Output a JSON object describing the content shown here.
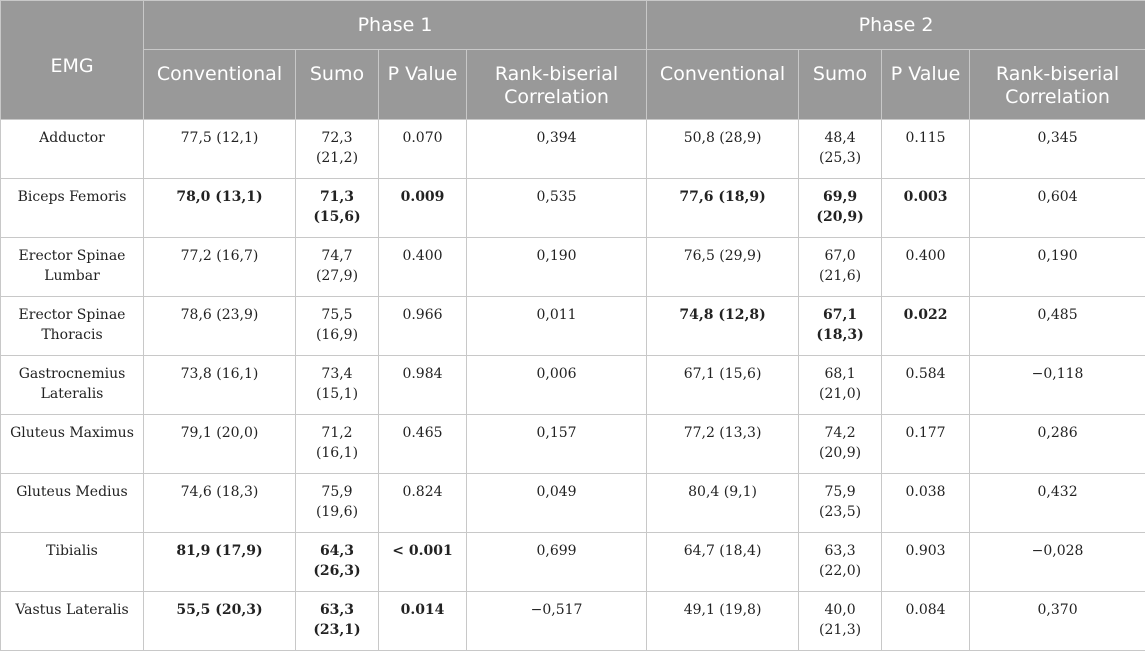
{
  "header": {
    "emg": "EMG",
    "phase1": "Phase 1",
    "phase2": "Phase 2",
    "conventional": "Conventional",
    "sumo": "Sumo",
    "p_value": "P Value",
    "rank_biserial": "Rank-biserial Correlation"
  },
  "rows": [
    {
      "muscle": "Adductor",
      "p1_conv": "77,5 (12,1)",
      "p1_sumo": "72,3 (21,2)",
      "p1_p": "0.070",
      "p1_r": "0,394",
      "p2_conv": "50,8 (28,9)",
      "p2_sumo": "48,4 (25,3)",
      "p2_p": "0.115",
      "p2_r": "0,345"
    },
    {
      "muscle": "Biceps Femoris",
      "p1_conv": "78,0 (13,1)",
      "p1_sumo": "71,3 (15,6)",
      "p1_p": "0.009",
      "p1_r": "0,535",
      "p2_conv": "77,6 (18,9)",
      "p2_sumo": "69,9 (20,9)",
      "p2_p": "0.003",
      "p2_r": "0,604"
    },
    {
      "muscle": "Erector Spinae Lumbar",
      "p1_conv": "77,2 (16,7)",
      "p1_sumo": "74,7 (27,9)",
      "p1_p": "0.400",
      "p1_r": "0,190",
      "p2_conv": "76,5 (29,9)",
      "p2_sumo": "67,0 (21,6)",
      "p2_p": "0.400",
      "p2_r": "0,190"
    },
    {
      "muscle": "Erector Spinae Thoracis",
      "p1_conv": "78,6 (23,9)",
      "p1_sumo": "75,5 (16,9)",
      "p1_p": "0.966",
      "p1_r": "0,011",
      "p2_conv": "74,8 (12,8)",
      "p2_sumo": "67,1 (18,3)",
      "p2_p": "0.022",
      "p2_r": "0,485"
    },
    {
      "muscle": "Gastrocnemius Lateralis",
      "p1_conv": "73,8 (16,1)",
      "p1_sumo": "73,4 (15,1)",
      "p1_p": "0.984",
      "p1_r": "0,006",
      "p2_conv": "67,1 (15,6)",
      "p2_sumo": "68,1 (21,0)",
      "p2_p": "0.584",
      "p2_r": "−0,118"
    },
    {
      "muscle": "Gluteus Maximus",
      "p1_conv": "79,1 (20,0)",
      "p1_sumo": "71,2 (16,1)",
      "p1_p": "0.465",
      "p1_r": "0,157",
      "p2_conv": "77,2 (13,3)",
      "p2_sumo": "74,2 (20,9)",
      "p2_p": "0.177",
      "p2_r": "0,286"
    },
    {
      "muscle": "Gluteus Medius",
      "p1_conv": "74,6 (18,3)",
      "p1_sumo": "75,9 (19,6)",
      "p1_p": "0.824",
      "p1_r": "0,049",
      "p2_conv": "80,4 (9,1)",
      "p2_sumo": "75,9 (23,5)",
      "p2_p": "0.038",
      "p2_r": "0,432"
    },
    {
      "muscle": "Tibialis",
      "p1_conv": "81,9 (17,9)",
      "p1_sumo": "64,3 (26,3)",
      "p1_p": "< 0.001",
      "p1_r": "0,699",
      "p2_conv": "64,7 (18,4)",
      "p2_sumo": "63,3 (22,0)",
      "p2_p": "0.903",
      "p2_r": "−0,028"
    },
    {
      "muscle": "Vastus Lateralis",
      "p1_conv": "55,5 (20,3)",
      "p1_sumo": "63,3 (23,1)",
      "p1_p": "0.014",
      "p1_r": "−0,517",
      "p2_conv": "49,1 (19,8)",
      "p2_sumo": "40,0 (21,3)",
      "p2_p": "0.084",
      "p2_r": "0,370"
    }
  ]
}
